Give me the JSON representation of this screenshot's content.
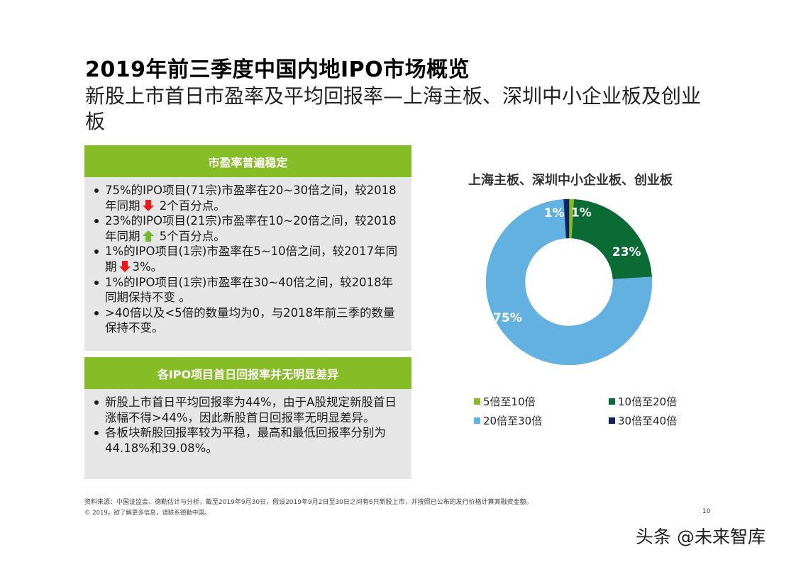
{
  "header": {
    "title": "2019年前三季度中国内地IPO市场概览",
    "subtitle": "新股上市首日市盈率及平均回报率—上海主板、深圳中小企业板及创业板"
  },
  "panels": [
    {
      "heading": "市盈率普遍稳定",
      "bullets": [
        {
          "before": "75%的IPO项目(71宗)市盈率在20~30倍之间，较2018年同期",
          "icon": "arrow-down-red",
          "after": " 2个百分点。"
        },
        {
          "before": "23%的IPO项目(21宗)市盈率在10~20倍之间，较2018年同期",
          "icon": "arrow-up-green",
          "after": " 5个百分点。"
        },
        {
          "before": "1%的IPO项目(1宗)市盈率在5~10倍之间，较2017年同期",
          "icon": "arrow-down-red",
          "after": "3%。"
        },
        {
          "before": "1%的IPO项目(1宗)市盈率在30~40倍之间，较2018年同期保持不变 。",
          "icon": null,
          "after": ""
        },
        {
          "before": ">40倍以及<5倍的数量均为0，与2018年前三季的数量保持不变。",
          "icon": null,
          "after": ""
        }
      ]
    },
    {
      "heading": "各IPO项目首日回报率并无明显差异",
      "bullets": [
        {
          "before": "新股上市首日平均回报率为44%，由于A股规定新股首日涨幅不得>44%，因此新股首日回报率无明显差异。",
          "icon": null,
          "after": ""
        },
        {
          "before": "各板块新股回报率较为平稳，最高和最低回报率分别为44.18%和39.08%。",
          "icon": null,
          "after": ""
        }
      ]
    }
  ],
  "colors": {
    "accent_green": "#86bc25",
    "arrow_red": "#e8191b",
    "arrow_green": "#76b82a",
    "panel_bg": "#e6e6e6"
  },
  "chart_data": {
    "type": "pie",
    "variant": "donut",
    "title": "上海主板、深圳中小企业板、创业板",
    "categories": [
      "5倍至10倍",
      "10倍至20倍",
      "20倍至30倍",
      "30倍至40倍"
    ],
    "values": [
      1,
      23,
      75,
      1
    ],
    "labels": [
      "1%",
      "23%",
      "75%",
      "1%"
    ],
    "colors": [
      "#86bc25",
      "#0a6b35",
      "#62b1e1",
      "#0b2265"
    ],
    "start_angle": "12 o'clock",
    "direction": "clockwise",
    "legend_position": "bottom",
    "unit": "%"
  },
  "footer": {
    "source": "资料来源：中国证监会、德勤估计与分析，截至2019年9月30日，假设2019年9月2日至30日之间有6只新股上市，并按照已公布的发行价格计算其融资金额。",
    "copyright": "© 2019。欲了解更多信息，请联系德勤中国。",
    "page_number": "10"
  },
  "watermark": "头条 @未来智库"
}
